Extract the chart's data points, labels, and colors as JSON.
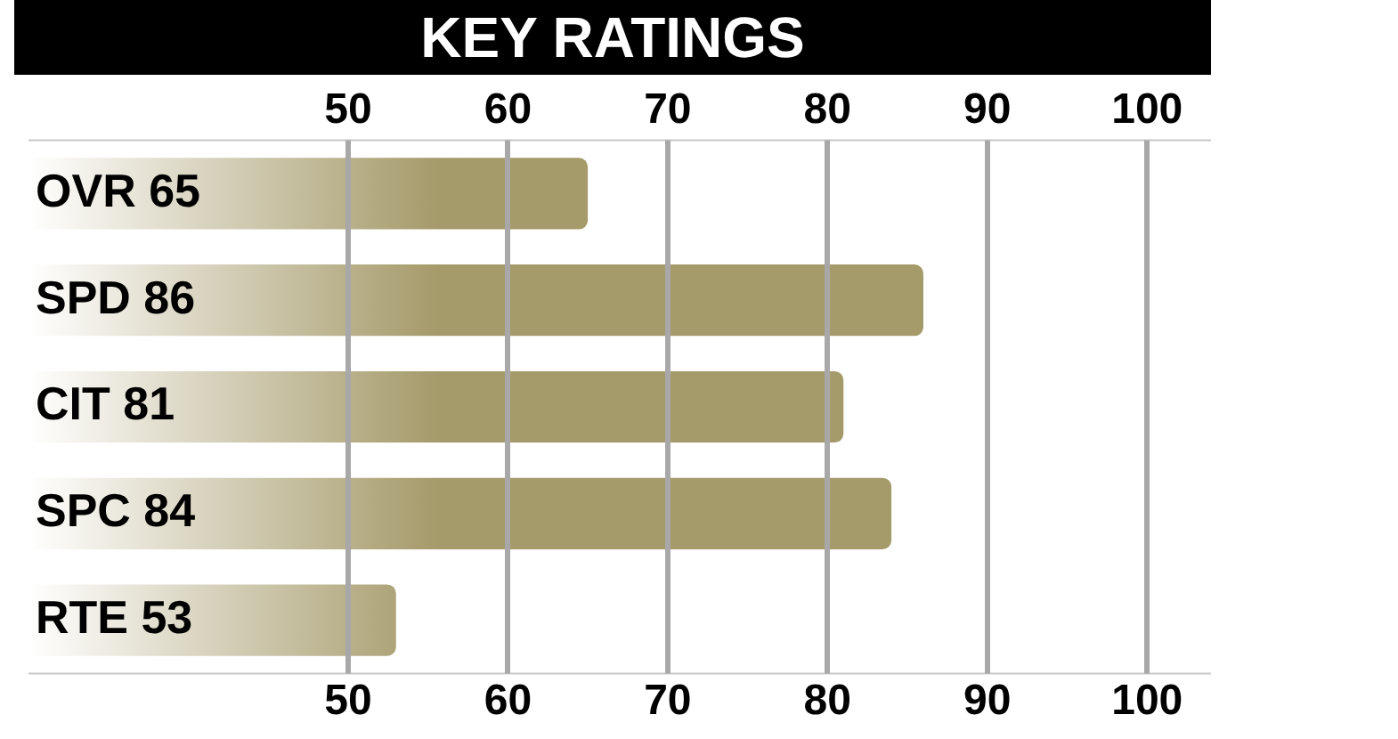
{
  "chart_data": {
    "type": "bar",
    "orientation": "horizontal",
    "title": "KEY RATINGS",
    "categories": [
      "OVR 65",
      "SPD 86",
      "CIT 81",
      "SPC 84",
      "RTE 53"
    ],
    "values": [
      65,
      86,
      81,
      84,
      53
    ],
    "color": "#a59a6a",
    "xlim": [
      30,
      104
    ],
    "xticks": [
      50,
      60,
      70,
      80,
      90,
      100
    ],
    "x2lim": [
      30,
      104
    ],
    "x2ticks": [
      50,
      60,
      70,
      80,
      90,
      100
    ],
    "grid": "x",
    "legend": false
  }
}
